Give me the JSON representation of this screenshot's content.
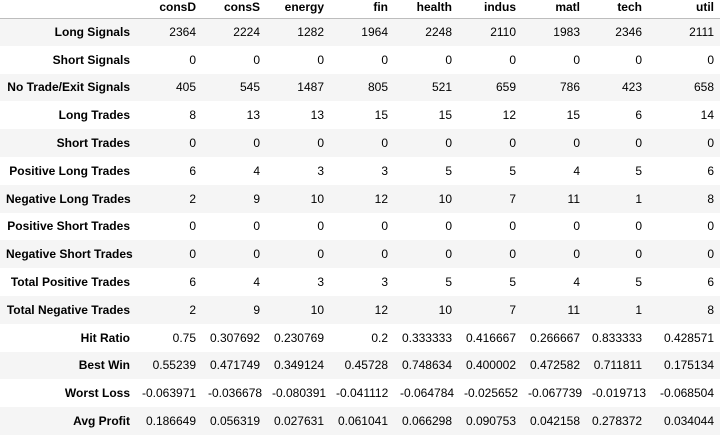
{
  "table": {
    "columns": [
      "consD",
      "consS",
      "energy",
      "fin",
      "health",
      "indus",
      "matl",
      "tech",
      "util"
    ],
    "rows": [
      {
        "label": "Long Signals",
        "values": [
          "2364",
          "2224",
          "1282",
          "1964",
          "2248",
          "2110",
          "1983",
          "2346",
          "2111"
        ]
      },
      {
        "label": "Short Signals",
        "values": [
          "0",
          "0",
          "0",
          "0",
          "0",
          "0",
          "0",
          "0",
          "0"
        ]
      },
      {
        "label": "No Trade/Exit Signals",
        "values": [
          "405",
          "545",
          "1487",
          "805",
          "521",
          "659",
          "786",
          "423",
          "658"
        ]
      },
      {
        "label": "Long Trades",
        "values": [
          "8",
          "13",
          "13",
          "15",
          "15",
          "12",
          "15",
          "6",
          "14"
        ]
      },
      {
        "label": "Short Trades",
        "values": [
          "0",
          "0",
          "0",
          "0",
          "0",
          "0",
          "0",
          "0",
          "0"
        ]
      },
      {
        "label": "Positive Long Trades",
        "values": [
          "6",
          "4",
          "3",
          "3",
          "5",
          "5",
          "4",
          "5",
          "6"
        ]
      },
      {
        "label": "Negative Long Trades",
        "values": [
          "2",
          "9",
          "10",
          "12",
          "10",
          "7",
          "11",
          "1",
          "8"
        ]
      },
      {
        "label": "Positive Short Trades",
        "values": [
          "0",
          "0",
          "0",
          "0",
          "0",
          "0",
          "0",
          "0",
          "0"
        ]
      },
      {
        "label": "Negative Short Trades",
        "values": [
          "0",
          "0",
          "0",
          "0",
          "0",
          "0",
          "0",
          "0",
          "0"
        ]
      },
      {
        "label": "Total Positive Trades",
        "values": [
          "6",
          "4",
          "3",
          "3",
          "5",
          "5",
          "4",
          "5",
          "6"
        ]
      },
      {
        "label": "Total Negative Trades",
        "values": [
          "2",
          "9",
          "10",
          "12",
          "10",
          "7",
          "11",
          "1",
          "8"
        ]
      },
      {
        "label": "Hit Ratio",
        "values": [
          "0.75",
          "0.307692",
          "0.230769",
          "0.2",
          "0.333333",
          "0.416667",
          "0.266667",
          "0.833333",
          "0.428571"
        ]
      },
      {
        "label": "Best Win",
        "values": [
          "0.55239",
          "0.471749",
          "0.349124",
          "0.45728",
          "0.748634",
          "0.400002",
          "0.472582",
          "0.711811",
          "0.175134"
        ]
      },
      {
        "label": "Worst Loss",
        "values": [
          "-0.063971",
          "-0.036678",
          "-0.080391",
          "-0.041112",
          "-0.064784",
          "-0.025652",
          "-0.067739",
          "-0.019713",
          "-0.068504"
        ]
      },
      {
        "label": "Avg Profit",
        "values": [
          "0.186649",
          "0.056319",
          "0.027631",
          "0.061041",
          "0.066298",
          "0.090753",
          "0.042158",
          "0.278372",
          "0.034044"
        ]
      }
    ]
  }
}
